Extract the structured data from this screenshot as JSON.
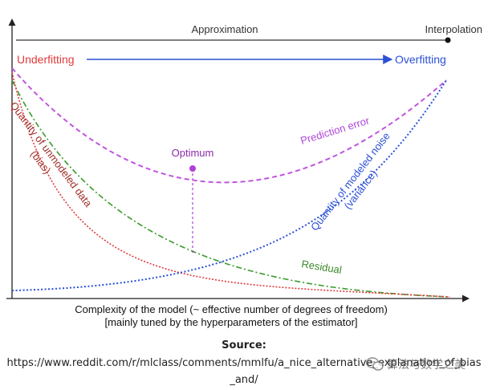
{
  "diagram": {
    "top_axis": {
      "left_label": "Approximation",
      "right_label": "Interpolation"
    },
    "arrow": {
      "left_label": "Underfitting",
      "right_label": "Overfitting"
    },
    "curves": {
      "prediction_error": "Prediction error",
      "bias_line1": "Quantity of unmodeled data",
      "bias_line2": "(bias)",
      "variance_line1": "Quantity of modeled noise",
      "variance_line2": "(variance)",
      "residual": "Residual"
    },
    "optimum_label": "Optimum",
    "x_axis_line1": "Complexity of the model (~ effective number of degrees of freedom)",
    "x_axis_line2": "[mainly tuned by the hyperparameters of the estimator]"
  },
  "source": {
    "label": "Source:",
    "url": "https://www.reddit.com/r/mlclass/comments/mmlfu/a_nice_alternative_explanation_of_bias_and/"
  },
  "watermark": {
    "text": "算法与数学之美"
  },
  "colors": {
    "underfit": "#e23a3a",
    "overfit": "#2b50d6",
    "prediction": "#c154e0",
    "bias": "#a0302a",
    "residual": "#3a9a2a",
    "axis": "#222222",
    "optimum": "#b040d8"
  }
}
